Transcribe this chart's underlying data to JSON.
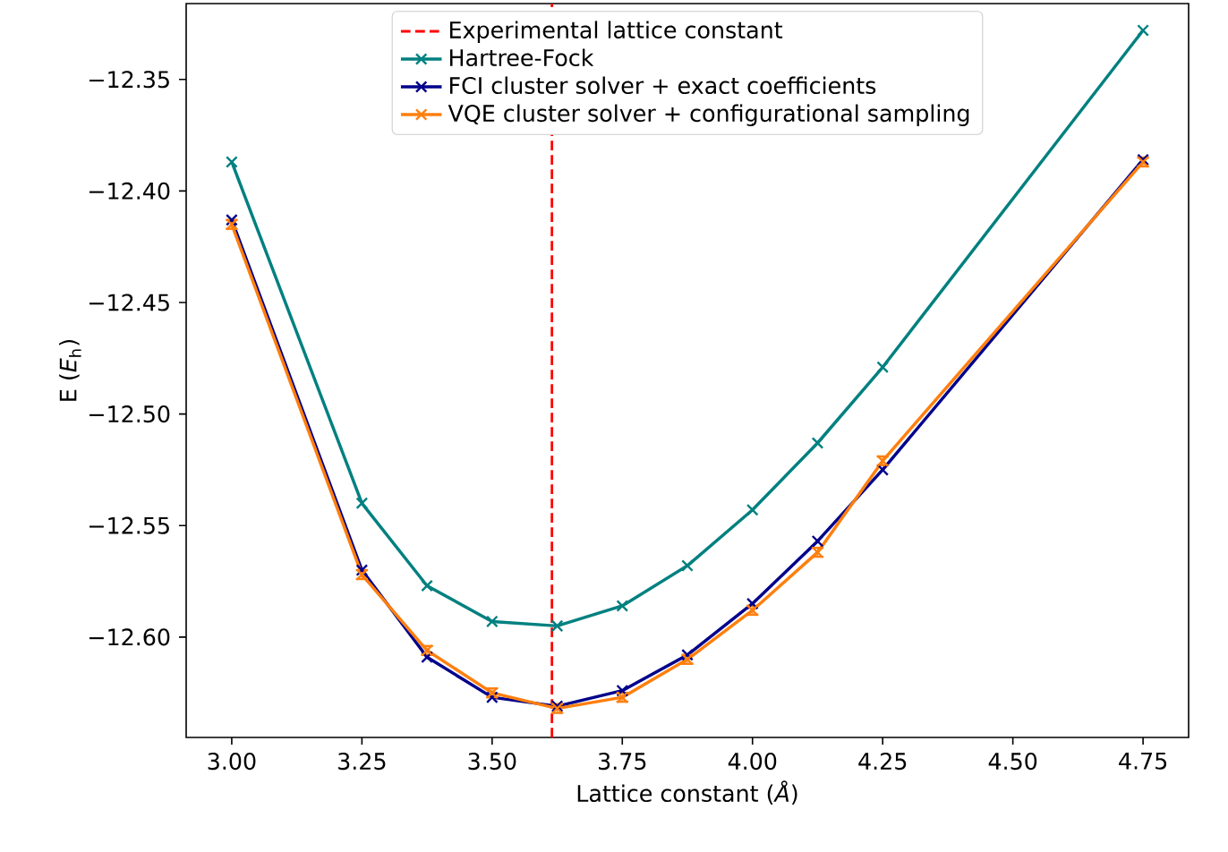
{
  "chart_data": {
    "type": "line",
    "xlabel": "Lattice constant (*Å*)",
    "ylabel": "E (*E*$_{h}$)",
    "x": [
      3.0,
      3.25,
      3.375,
      3.5,
      3.625,
      3.75,
      3.875,
      4.0,
      4.125,
      4.25,
      4.75
    ],
    "series": [
      {
        "name": "Hartree-Fock",
        "color": "#008080",
        "values": [
          -12.387,
          -12.54,
          -12.577,
          -12.593,
          -12.595,
          -12.586,
          -12.568,
          -12.543,
          -12.513,
          -12.479,
          -12.328
        ]
      },
      {
        "name": "FCI cluster solver + exact coefficients",
        "color": "#00008b",
        "values": [
          -12.413,
          -12.57,
          -12.609,
          -12.627,
          -12.631,
          -12.624,
          -12.608,
          -12.585,
          -12.557,
          -12.525,
          -12.386
        ]
      },
      {
        "name": "VQE cluster solver + configurational sampling",
        "color": "#ff7f0e",
        "values": [
          -12.415,
          -12.572,
          -12.606,
          -12.625,
          -12.632,
          -12.627,
          -12.61,
          -12.588,
          -12.562,
          -12.521,
          -12.387
        ],
        "errors": [
          0.002,
          0.002,
          0.002,
          0.002,
          0.002,
          0.002,
          0.002,
          0.002,
          0.002,
          0.002,
          0.002
        ]
      }
    ],
    "ref_lines": [
      {
        "axis": "x",
        "value": 3.615,
        "label": "Experimental lattice constant",
        "color": "#ff0000",
        "line_style": "dashed"
      }
    ],
    "xlim": [
      2.9125,
      4.8375
    ],
    "ylim": [
      -12.645,
      -12.316
    ],
    "xticks": [
      {
        "value": 3.0,
        "label": "3.00"
      },
      {
        "value": 3.25,
        "label": "3.25"
      },
      {
        "value": 3.5,
        "label": "3.50"
      },
      {
        "value": 3.75,
        "label": "3.75"
      },
      {
        "value": 4.0,
        "label": "4.00"
      },
      {
        "value": 4.25,
        "label": "4.25"
      },
      {
        "value": 4.5,
        "label": "4.50"
      },
      {
        "value": 4.75,
        "label": "4.75"
      }
    ],
    "yticks": [
      {
        "value": -12.35,
        "label": "−12.35"
      },
      {
        "value": -12.4,
        "label": "−12.40"
      },
      {
        "value": -12.45,
        "label": "−12.45"
      },
      {
        "value": -12.5,
        "label": "−12.50"
      },
      {
        "value": -12.55,
        "label": "−12.55"
      },
      {
        "value": -12.6,
        "label": "−12.60"
      }
    ],
    "legend": "top",
    "marker": "cross",
    "line_style": "solid"
  }
}
